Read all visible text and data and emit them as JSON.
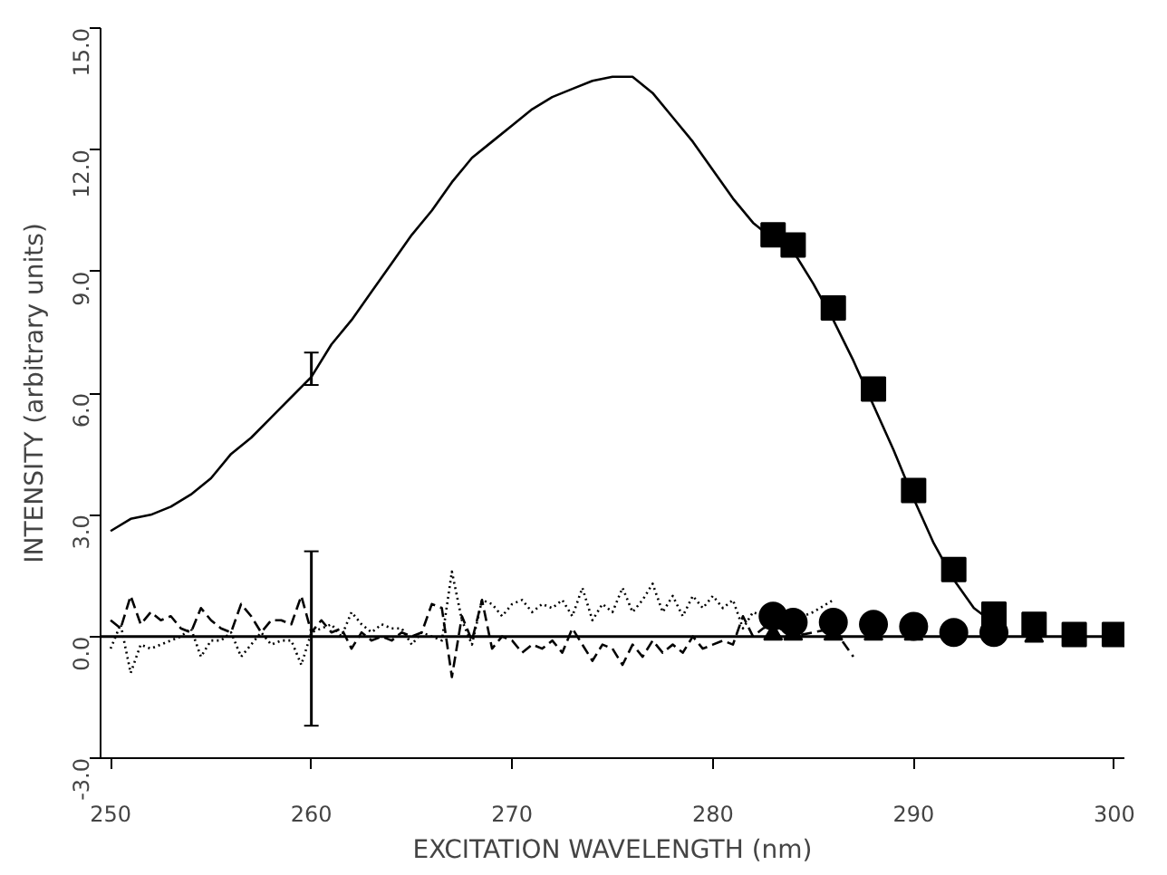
{
  "chart_data": {
    "type": "line",
    "xlabel": "EXCITATION WAVELENGTH (nm)",
    "ylabel": "INTENSITY (arbitrary units)",
    "xlim": [
      249.5,
      300.5
    ],
    "ylim": [
      -3.0,
      15.0
    ],
    "xticks": [
      250,
      260,
      270,
      280,
      290,
      300
    ],
    "yticks": [
      {
        "value": -3.0,
        "label": "-3.0"
      },
      {
        "value": 0.0,
        "label": "0.0"
      },
      {
        "value": 3.0,
        "label": "3.0"
      },
      {
        "value": 6.0,
        "label": "6.0"
      },
      {
        "value": 9.0,
        "label": "9.0"
      },
      {
        "value": 12.0,
        "label": "12.0"
      },
      {
        "value": 15.0,
        "label": "15.0"
      }
    ],
    "grid": false,
    "ref_lines": [
      {
        "axis": "y",
        "value": 0.0,
        "color": "#000000",
        "line_style": "solid"
      }
    ],
    "series": [
      {
        "color": "#000000",
        "line_style": "solid",
        "marker": "none",
        "x": [
          250,
          251,
          252,
          253,
          254,
          255,
          256,
          257,
          258,
          259,
          260,
          261,
          262,
          263,
          264,
          265,
          266,
          267,
          268,
          269,
          270,
          271,
          272,
          273,
          274,
          275,
          276,
          277,
          278,
          279,
          280,
          281,
          282,
          283,
          284,
          285,
          286,
          287,
          288,
          289,
          290,
          291,
          292,
          293,
          293.8
        ],
        "values": [
          2.6,
          2.9,
          3.0,
          3.2,
          3.5,
          3.9,
          4.5,
          4.9,
          5.4,
          5.9,
          6.4,
          7.2,
          7.8,
          8.5,
          9.2,
          9.9,
          10.5,
          11.2,
          11.8,
          12.2,
          12.6,
          13.0,
          13.3,
          13.5,
          13.7,
          13.8,
          13.8,
          13.4,
          12.8,
          12.2,
          11.5,
          10.8,
          10.2,
          9.8,
          9.5,
          8.7,
          7.8,
          6.8,
          5.7,
          4.6,
          3.4,
          2.3,
          1.4,
          0.7,
          0.4
        ],
        "errors": [
          null,
          null,
          null,
          null,
          null,
          null,
          null,
          null,
          null,
          null,
          [
            6.2,
            7.0
          ],
          null,
          null,
          null,
          null,
          null,
          null,
          null,
          null,
          null,
          null,
          null,
          null,
          null,
          null,
          null,
          null,
          null,
          null,
          null,
          null,
          null,
          null,
          null,
          null,
          null,
          null,
          null,
          null,
          null,
          null,
          null,
          null,
          null,
          null
        ]
      },
      {
        "color": "#000000",
        "line_style": "dashed",
        "errors": [
          null,
          null,
          null,
          null,
          null,
          null,
          null,
          null,
          null,
          null,
          null,
          null,
          null,
          null,
          null,
          null,
          null,
          null,
          null,
          null,
          [
            -2.2,
            2.1
          ],
          null,
          null,
          null,
          null,
          null,
          null,
          null,
          null,
          null,
          null,
          null,
          null,
          null,
          null,
          null,
          null,
          null,
          null,
          null,
          null,
          null,
          null,
          null,
          null,
          null,
          null,
          null,
          null,
          null,
          null,
          null,
          null,
          null,
          null,
          null,
          null,
          null,
          null,
          null,
          null,
          null,
          null,
          null,
          null,
          null,
          null,
          null,
          null,
          null,
          null
        ],
        "marker": "none",
        "x": [
          250,
          250.5,
          251,
          251.5,
          252,
          252.5,
          253,
          253.5,
          254,
          254.5,
          255,
          255.5,
          256,
          256.5,
          257,
          257.5,
          258,
          258.5,
          259,
          259.5,
          260,
          260.5,
          261,
          261.5,
          262,
          262.5,
          263,
          263.5,
          264,
          264.5,
          265,
          265.5,
          266,
          266.5,
          267,
          267.5,
          268,
          268.5,
          269,
          269.5,
          270,
          270.5,
          271,
          271.5,
          272,
          272.5,
          273,
          273.5,
          274,
          274.5,
          275,
          275.5,
          276,
          276.5,
          277,
          277.5,
          278,
          278.5,
          279,
          279.5,
          280,
          280.5,
          281,
          281.5,
          282,
          282.5,
          283,
          284,
          285,
          286,
          287
        ],
        "values": [
          0.4,
          0.2,
          1.0,
          0.3,
          0.6,
          0.4,
          0.5,
          0.2,
          0.1,
          0.7,
          0.4,
          0.2,
          0.1,
          0.8,
          0.5,
          0.1,
          0.4,
          0.4,
          0.3,
          1.0,
          0.1,
          0.4,
          0.1,
          0.2,
          -0.3,
          0.1,
          -0.1,
          0.0,
          -0.1,
          0.1,
          0.0,
          0.1,
          0.8,
          0.7,
          -1.0,
          0.5,
          -0.1,
          0.9,
          -0.3,
          0.0,
          -0.1,
          -0.4,
          -0.2,
          -0.3,
          -0.1,
          -0.4,
          0.2,
          -0.2,
          -0.6,
          -0.2,
          -0.3,
          -0.7,
          -0.2,
          -0.5,
          -0.1,
          -0.4,
          -0.2,
          -0.4,
          0.0,
          -0.3,
          -0.2,
          -0.1,
          -0.2,
          0.5,
          0.0,
          0.2,
          0.3,
          0.0,
          0.1,
          0.2,
          -0.5
        ]
      },
      {
        "color": "#000000",
        "line_style": "dotted",
        "marker": "none",
        "x": [
          250,
          250.5,
          251,
          251.5,
          252,
          252.5,
          253,
          253.5,
          254,
          254.5,
          255,
          255.5,
          256,
          256.5,
          257,
          257.5,
          258,
          258.5,
          259,
          259.5,
          260,
          260.5,
          261,
          261.5,
          262,
          262.5,
          263,
          263.5,
          264,
          264.5,
          265,
          265.5,
          266,
          266.5,
          267,
          267.5,
          268,
          268.5,
          269,
          269.5,
          270,
          270.5,
          271,
          271.5,
          272,
          272.5,
          273,
          273.5,
          274,
          274.5,
          275,
          275.5,
          276,
          276.5,
          277,
          277.5,
          278,
          278.5,
          279,
          279.5,
          280,
          280.5,
          281,
          281.5,
          282,
          282.5,
          283,
          284,
          285,
          286
        ],
        "values": [
          -0.3,
          0.3,
          -0.9,
          -0.2,
          -0.3,
          -0.2,
          -0.1,
          0.0,
          0.2,
          -0.5,
          -0.1,
          -0.1,
          0.1,
          -0.5,
          -0.2,
          0.1,
          -0.2,
          -0.1,
          -0.1,
          -0.7,
          0.1,
          0.2,
          0.3,
          0.0,
          0.6,
          0.3,
          0.1,
          0.3,
          0.2,
          0.2,
          -0.2,
          0.1,
          0.0,
          -0.1,
          1.6,
          0.4,
          -0.2,
          0.9,
          0.8,
          0.5,
          0.8,
          0.9,
          0.6,
          0.8,
          0.7,
          0.9,
          0.5,
          1.2,
          0.4,
          0.8,
          0.6,
          1.2,
          0.6,
          0.9,
          1.3,
          0.6,
          1.0,
          0.5,
          1.0,
          0.7,
          1.0,
          0.7,
          0.9,
          0.2,
          0.6,
          0.5,
          0.4,
          0.4,
          0.6,
          0.9
        ]
      },
      {
        "type": "scatter",
        "color": "#000000",
        "marker": "square",
        "x": [
          283,
          284,
          286,
          288,
          290,
          292,
          294,
          296,
          298,
          300
        ],
        "values": [
          9.9,
          9.65,
          8.1,
          6.1,
          3.6,
          1.65,
          0.55,
          0.3,
          0.05,
          0.05
        ]
      },
      {
        "type": "scatter",
        "color": "#000000",
        "marker": "circle",
        "x": [
          283,
          284,
          286,
          288,
          290,
          292,
          294
        ],
        "values": [
          0.5,
          0.35,
          0.35,
          0.3,
          0.25,
          0.1,
          0.1
        ]
      },
      {
        "type": "scatter",
        "color": "#000000",
        "marker": "triangle",
        "x": [
          283,
          284,
          286,
          288,
          290,
          292,
          294,
          296
        ],
        "values": [
          0.05,
          0.05,
          0.05,
          0.05,
          0.05,
          null,
          null,
          0.0
        ]
      }
    ]
  }
}
